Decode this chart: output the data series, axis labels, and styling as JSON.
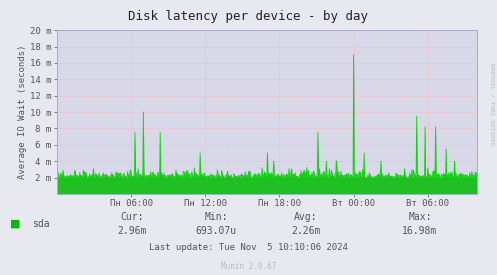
{
  "title": "Disk latency per device - by day",
  "ylabel": "Average IO Wait (seconds)",
  "background_color": "#e8e8f0",
  "plot_bg_color": "#d8d8e8",
  "grid_color": "#ffaaaa",
  "line_color": "#00dd00",
  "fill_color": "#00bb00",
  "ylim": [
    0,
    0.02
  ],
  "yticks": [
    0.002,
    0.004,
    0.006,
    0.008,
    0.01,
    0.012,
    0.014,
    0.016,
    0.018,
    0.02
  ],
  "ytick_labels": [
    "2 m",
    "4 m",
    "6 m",
    "8 m",
    "10 m",
    "12 m",
    "14 m",
    "16 m",
    "18 m",
    "20 m"
  ],
  "xtick_labels": [
    "Пн 06:00",
    "Пн 12:00",
    "Пн 18:00",
    "Вт 00:00",
    "Вт 06:00"
  ],
  "xtick_positions": [
    0.17647,
    0.35294,
    0.52941,
    0.70588,
    0.88235
  ],
  "legend_label": "sda",
  "cur_label": "Cur:",
  "cur_value": "2.96m",
  "min_label": "Min:",
  "min_value": "693.07u",
  "avg_label": "Avg:",
  "avg_value": "2.26m",
  "max_label": "Max:",
  "max_value": "16.98m",
  "last_update": "Last update: Tue Nov  5 10:10:06 2024",
  "munin_label": "Munin 2.0.67",
  "rrdtool_label": "RRDTOOL / TOBI OETIKER",
  "title_color": "#222222",
  "text_color": "#555555",
  "axis_color": "#aaaacc",
  "legend_color": "#00bb00"
}
